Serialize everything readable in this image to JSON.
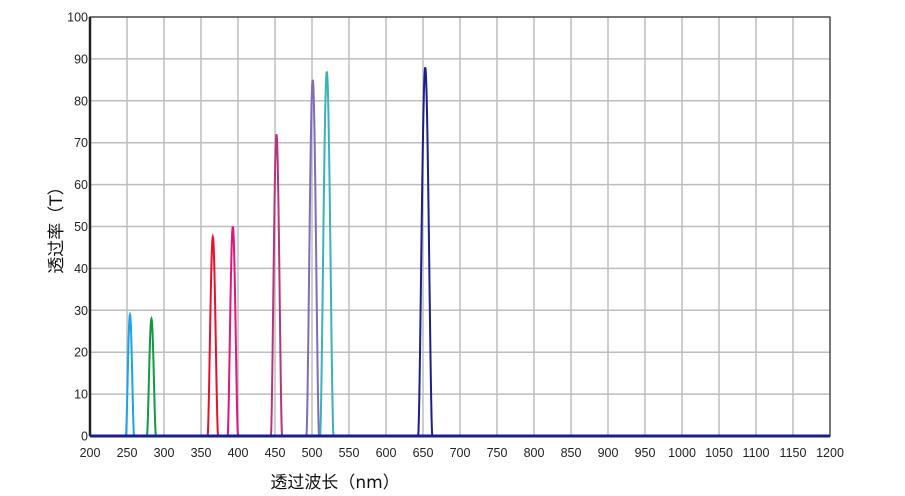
{
  "chart_data": {
    "type": "line",
    "title": "",
    "xlabel": "透过波长（nm）",
    "ylabel": "透过率（T）",
    "xlim": [
      200,
      1200
    ],
    "ylim": [
      0,
      100
    ],
    "grid": true,
    "legend": "none",
    "x_ticks": [
      "200",
      "250",
      "300",
      "350",
      "400",
      "450",
      "500",
      "550",
      "600",
      "650",
      "700",
      "750",
      "800",
      "850",
      "900",
      "950",
      "1000",
      "1050",
      "1100",
      "1150",
      "1200"
    ],
    "y_ticks": [
      "0",
      "10",
      "20",
      "30",
      "40",
      "50",
      "60",
      "70",
      "80",
      "90",
      "100"
    ],
    "series": [
      {
        "center_nm": 254,
        "peak_T": 29,
        "base_width_nm": 11,
        "color": "#1aa3e8"
      },
      {
        "center_nm": 283,
        "peak_T": 28,
        "base_width_nm": 12,
        "color": "#119944"
      },
      {
        "center_nm": 366,
        "peak_T": 47.5,
        "base_width_nm": 14,
        "color": "#e8102a"
      },
      {
        "center_nm": 393,
        "peak_T": 50,
        "base_width_nm": 14,
        "color": "#e0157e"
      },
      {
        "center_nm": 452,
        "peak_T": 72,
        "base_width_nm": 15,
        "color": "#b8337e"
      },
      {
        "center_nm": 501,
        "peak_T": 85,
        "base_width_nm": 17,
        "color": "#7e6cb8"
      },
      {
        "center_nm": 520,
        "peak_T": 87,
        "base_width_nm": 18,
        "color": "#3ab3b8"
      },
      {
        "center_nm": 653,
        "peak_T": 88,
        "base_width_nm": 19,
        "color": "#1a1f8c"
      }
    ],
    "baseline_color": "#1a1f8c"
  }
}
